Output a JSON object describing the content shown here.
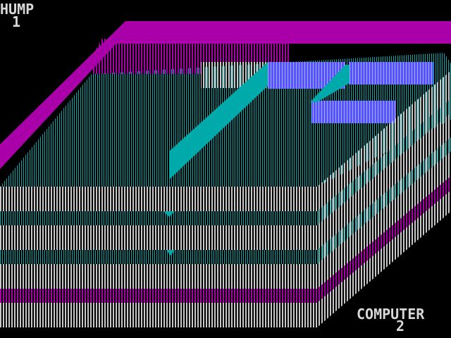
{
  "players": [
    {
      "name": "HUMP",
      "score": "1"
    },
    {
      "name": "COMPUTER",
      "score": "2"
    }
  ]
}
